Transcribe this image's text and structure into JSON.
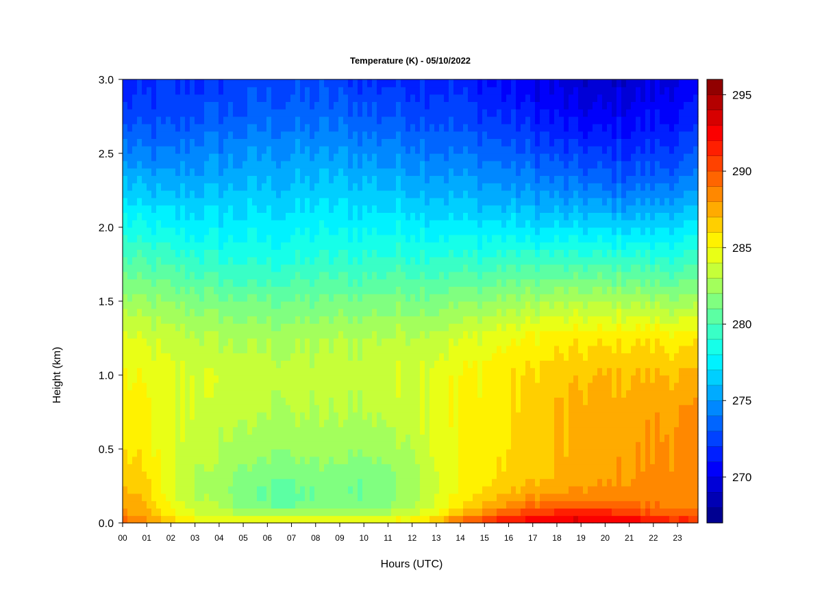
{
  "chart_data": {
    "type": "heatmap",
    "title": "Temperature (K) - 05/10/2022",
    "xlabel": "Hours (UTC)",
    "ylabel": "Height (km)",
    "x_ticks": [
      "00",
      "01",
      "02",
      "03",
      "04",
      "05",
      "06",
      "07",
      "08",
      "09",
      "10",
      "11",
      "12",
      "13",
      "14",
      "15",
      "16",
      "17",
      "18",
      "19",
      "20",
      "21",
      "22",
      "23"
    ],
    "y_ticks": [
      "0.0",
      "0.5",
      "1.0",
      "1.5",
      "2.0",
      "2.5",
      "3.0"
    ],
    "xlim": [
      0,
      23.85
    ],
    "ylim": [
      0,
      3.0
    ],
    "colorbar": {
      "vmin": 267,
      "vmax": 296,
      "ticks": [
        "270",
        "275",
        "280",
        "285",
        "290",
        "295"
      ],
      "tick_values": [
        270,
        275,
        280,
        285,
        290,
        295
      ],
      "levels": 29,
      "colormap": "jet"
    },
    "heights_km": [
      0.0,
      0.05,
      0.1,
      0.2,
      0.3,
      0.5,
      0.75,
      1.0,
      1.25,
      1.5,
      1.75,
      2.0,
      2.25,
      2.5,
      2.75,
      3.0
    ],
    "hours": [
      0,
      1,
      2,
      3,
      4,
      5,
      6,
      7,
      8,
      9,
      10,
      11,
      12,
      13,
      14,
      15,
      16,
      17,
      18,
      19,
      20,
      21,
      22,
      23,
      23.85
    ],
    "temperature_K": [
      [
        290.0,
        288.5,
        288.0,
        287.2,
        286.5,
        286.0,
        285.5,
        285.0,
        284.2,
        282.5,
        280.5,
        278.5,
        276.5,
        274.5,
        272.5,
        271.0
      ],
      [
        288.5,
        287.5,
        287.0,
        286.5,
        286.0,
        285.5,
        285.2,
        284.7,
        283.8,
        282.0,
        280.0,
        278.0,
        276.0,
        274.0,
        272.5,
        271.5
      ],
      [
        287.0,
        285.5,
        284.8,
        284.2,
        284.0,
        284.0,
        284.0,
        284.0,
        283.5,
        281.8,
        279.8,
        277.8,
        275.8,
        274.0,
        272.5,
        271.8
      ],
      [
        285.5,
        284.5,
        283.5,
        283.0,
        283.0,
        283.5,
        284.0,
        284.0,
        283.2,
        281.5,
        279.5,
        277.5,
        276.0,
        274.5,
        273.0,
        272.0
      ],
      [
        285.2,
        284.2,
        283.0,
        282.5,
        282.5,
        283.0,
        283.5,
        283.8,
        283.0,
        281.2,
        279.2,
        277.5,
        276.0,
        274.5,
        273.0,
        272.0
      ],
      [
        285.0,
        283.5,
        281.5,
        281.0,
        281.5,
        282.5,
        283.2,
        283.5,
        282.8,
        281.0,
        279.0,
        277.5,
        276.2,
        274.8,
        273.2,
        272.2
      ],
      [
        285.0,
        283.5,
        281.2,
        280.8,
        281.2,
        282.3,
        283.0,
        283.5,
        282.8,
        281.0,
        279.0,
        277.5,
        276.2,
        275.0,
        273.5,
        272.5
      ],
      [
        285.0,
        283.3,
        281.0,
        280.5,
        281.0,
        282.2,
        283.0,
        283.3,
        282.8,
        281.0,
        279.0,
        277.6,
        276.2,
        275.0,
        273.5,
        272.5
      ],
      [
        285.0,
        283.5,
        281.5,
        281.0,
        281.5,
        282.3,
        283.0,
        283.3,
        282.8,
        281.0,
        279.2,
        277.8,
        276.4,
        275.0,
        273.5,
        272.5
      ],
      [
        285.0,
        283.5,
        281.8,
        281.2,
        281.5,
        282.3,
        283.0,
        283.5,
        283.0,
        281.2,
        279.3,
        277.8,
        276.4,
        275.0,
        273.5,
        272.3
      ],
      [
        285.2,
        283.5,
        281.5,
        281.0,
        281.2,
        282.2,
        283.0,
        283.5,
        283.0,
        281.3,
        279.3,
        277.8,
        276.3,
        274.8,
        273.3,
        272.0
      ],
      [
        285.3,
        283.8,
        282.0,
        281.3,
        281.5,
        282.5,
        283.3,
        283.8,
        283.2,
        281.5,
        279.5,
        277.8,
        276.2,
        274.6,
        273.0,
        271.8
      ],
      [
        286.0,
        284.5,
        283.0,
        282.5,
        282.5,
        283.2,
        283.8,
        284.0,
        283.3,
        281.5,
        279.5,
        277.8,
        276.0,
        274.5,
        273.0,
        271.8
      ],
      [
        287.5,
        285.5,
        284.5,
        284.0,
        284.0,
        284.5,
        284.5,
        284.5,
        283.5,
        281.5,
        279.5,
        277.5,
        275.8,
        274.2,
        272.8,
        271.8
      ],
      [
        290.0,
        287.5,
        286.0,
        285.2,
        285.0,
        285.0,
        285.0,
        285.0,
        284.0,
        281.8,
        279.5,
        277.5,
        275.5,
        274.0,
        272.5,
        271.5
      ],
      [
        291.5,
        289.0,
        287.5,
        286.2,
        285.8,
        285.5,
        285.5,
        285.3,
        284.3,
        282.0,
        279.5,
        277.3,
        275.3,
        273.7,
        272.2,
        271.0
      ],
      [
        292.5,
        290.5,
        288.5,
        287.0,
        286.3,
        286.0,
        286.0,
        285.8,
        284.8,
        282.3,
        279.8,
        277.3,
        275.0,
        273.3,
        271.8,
        270.5
      ],
      [
        293.0,
        291.5,
        289.5,
        287.5,
        286.8,
        286.5,
        286.5,
        286.2,
        285.2,
        282.5,
        279.8,
        277.0,
        274.8,
        273.0,
        271.3,
        270.0
      ],
      [
        293.3,
        292.0,
        290.0,
        288.0,
        287.0,
        287.0,
        287.0,
        286.5,
        285.5,
        282.8,
        279.8,
        277.0,
        274.5,
        272.5,
        270.8,
        269.5
      ],
      [
        293.5,
        292.3,
        290.3,
        288.3,
        287.5,
        287.3,
        287.3,
        286.8,
        285.5,
        282.8,
        279.8,
        276.8,
        274.3,
        272.2,
        270.3,
        269.0
      ],
      [
        293.3,
        292.0,
        290.0,
        288.3,
        287.8,
        287.5,
        287.5,
        287.0,
        285.7,
        282.8,
        279.8,
        276.8,
        274.0,
        272.0,
        270.3,
        269.0
      ],
      [
        293.0,
        291.5,
        289.5,
        288.5,
        288.0,
        287.8,
        287.5,
        287.0,
        285.8,
        282.8,
        279.8,
        276.8,
        274.0,
        272.0,
        270.5,
        269.3
      ],
      [
        292.5,
        290.5,
        289.0,
        288.5,
        288.3,
        288.0,
        287.8,
        287.0,
        285.8,
        282.5,
        279.5,
        276.8,
        274.2,
        272.3,
        270.8,
        269.5
      ],
      [
        292.0,
        290.0,
        288.8,
        288.5,
        288.3,
        288.3,
        288.0,
        287.0,
        285.5,
        282.3,
        279.5,
        277.0,
        274.5,
        272.5,
        271.0,
        270.0
      ],
      [
        291.5,
        289.8,
        288.5,
        288.3,
        288.3,
        288.3,
        288.0,
        287.0,
        285.5,
        282.3,
        279.5,
        277.0,
        274.5,
        272.8,
        271.2,
        270.0
      ]
    ]
  }
}
